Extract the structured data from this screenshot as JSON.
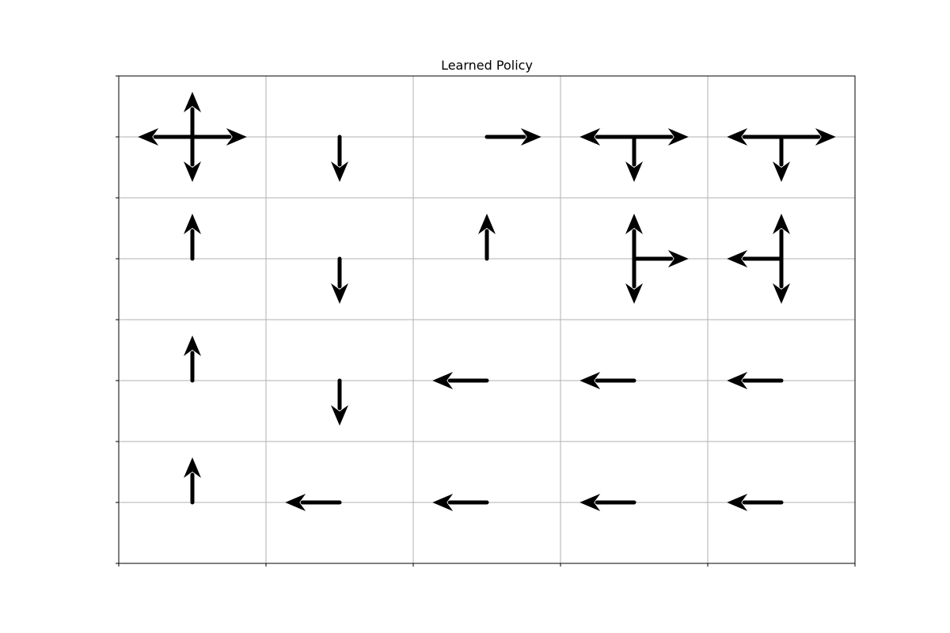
{
  "chart_data": {
    "type": "quiver",
    "title": "Learned Policy",
    "xlabel": "",
    "ylabel": "",
    "xlim": [
      0,
      5
    ],
    "ylim": [
      0,
      4
    ],
    "grid": true,
    "grid_color": "#b0b0b0",
    "arrow_color": "#000000",
    "cells": [
      {
        "row": 0,
        "col": 0,
        "actions": [
          "up",
          "down",
          "left",
          "right"
        ]
      },
      {
        "row": 0,
        "col": 1,
        "actions": [
          "down"
        ]
      },
      {
        "row": 0,
        "col": 2,
        "actions": [
          "right"
        ]
      },
      {
        "row": 0,
        "col": 3,
        "actions": [
          "down",
          "left",
          "right"
        ]
      },
      {
        "row": 0,
        "col": 4,
        "actions": [
          "down",
          "left",
          "right"
        ]
      },
      {
        "row": 1,
        "col": 0,
        "actions": [
          "up"
        ]
      },
      {
        "row": 1,
        "col": 1,
        "actions": [
          "down"
        ]
      },
      {
        "row": 1,
        "col": 2,
        "actions": [
          "up"
        ]
      },
      {
        "row": 1,
        "col": 3,
        "actions": [
          "up",
          "down",
          "right"
        ]
      },
      {
        "row": 1,
        "col": 4,
        "actions": [
          "up",
          "down",
          "left"
        ]
      },
      {
        "row": 2,
        "col": 0,
        "actions": [
          "up"
        ]
      },
      {
        "row": 2,
        "col": 1,
        "actions": [
          "down"
        ]
      },
      {
        "row": 2,
        "col": 2,
        "actions": [
          "left"
        ]
      },
      {
        "row": 2,
        "col": 3,
        "actions": [
          "left"
        ]
      },
      {
        "row": 2,
        "col": 4,
        "actions": [
          "left"
        ]
      },
      {
        "row": 3,
        "col": 0,
        "actions": [
          "up"
        ]
      },
      {
        "row": 3,
        "col": 1,
        "actions": [
          "left"
        ]
      },
      {
        "row": 3,
        "col": 2,
        "actions": [
          "left"
        ]
      },
      {
        "row": 3,
        "col": 3,
        "actions": [
          "left"
        ]
      },
      {
        "row": 3,
        "col": 4,
        "actions": [
          "left"
        ]
      }
    ]
  }
}
